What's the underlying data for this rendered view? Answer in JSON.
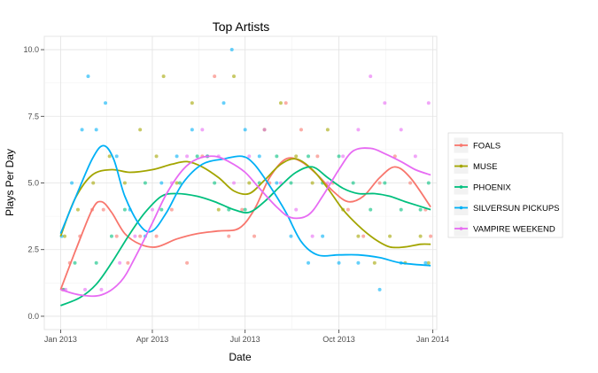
{
  "chart_data": {
    "type": "scatter",
    "title": "Top Artists",
    "xlabel": "Date",
    "ylabel": "Plays Per Day",
    "x_scale": "date",
    "xlim": [
      "2012-12-16",
      "2014-01-05"
    ],
    "ylim": [
      -0.5,
      10.5
    ],
    "x_ticks": [
      {
        "date": "2013-01-01",
        "label": "Jan 2013"
      },
      {
        "date": "2013-04-01",
        "label": "Apr 2013"
      },
      {
        "date": "2013-07-01",
        "label": "Jul 2013"
      },
      {
        "date": "2013-10-01",
        "label": "Oct 2013"
      },
      {
        "date": "2014-01-01",
        "label": "Jan 2014"
      }
    ],
    "y_ticks": [
      {
        "value": 0,
        "label": "0.0"
      },
      {
        "value": 2.5,
        "label": "2.5"
      },
      {
        "value": 5,
        "label": "5.0"
      },
      {
        "value": 7.5,
        "label": "7.5"
      },
      {
        "value": 10,
        "label": "10.0"
      }
    ],
    "grid": true,
    "legend_position": "right",
    "overlays": "smoothed trend lines per series",
    "series": [
      {
        "name": "FOALS",
        "color": "#F8766D",
        "points": [
          [
            "2013-01-03",
            1
          ],
          [
            "2013-01-10",
            2
          ],
          [
            "2013-01-20",
            3
          ],
          [
            "2013-02-01",
            4
          ],
          [
            "2013-02-12",
            4
          ],
          [
            "2013-02-25",
            3
          ],
          [
            "2013-03-08",
            2
          ],
          [
            "2013-03-20",
            3
          ],
          [
            "2013-04-05",
            3
          ],
          [
            "2013-04-20",
            4
          ],
          [
            "2013-05-05",
            2
          ],
          [
            "2013-05-20",
            6
          ],
          [
            "2013-06-01",
            9
          ],
          [
            "2013-06-15",
            3
          ],
          [
            "2013-06-28",
            4
          ],
          [
            "2013-07-10",
            3
          ],
          [
            "2013-07-25",
            5
          ],
          [
            "2013-08-10",
            8
          ],
          [
            "2013-08-25",
            7
          ],
          [
            "2013-09-10",
            6
          ],
          [
            "2013-09-25",
            5
          ],
          [
            "2013-10-10",
            4
          ],
          [
            "2013-10-25",
            3
          ],
          [
            "2013-11-10",
            5
          ],
          [
            "2013-11-25",
            6
          ],
          [
            "2013-12-10",
            5
          ],
          [
            "2013-12-25",
            4
          ],
          [
            "2013-12-30",
            3
          ]
        ],
        "trend": [
          [
            "2013-01-01",
            1.0
          ],
          [
            "2013-01-15",
            2.4
          ],
          [
            "2013-02-01",
            4.0
          ],
          [
            "2013-02-10",
            4.3
          ],
          [
            "2013-02-20",
            3.9
          ],
          [
            "2013-03-05",
            3.1
          ],
          [
            "2013-03-20",
            2.7
          ],
          [
            "2013-04-05",
            2.6
          ],
          [
            "2013-04-25",
            2.9
          ],
          [
            "2013-05-15",
            3.1
          ],
          [
            "2013-06-05",
            3.2
          ],
          [
            "2013-06-25",
            3.3
          ],
          [
            "2013-07-10",
            4.0
          ],
          [
            "2013-07-25",
            5.2
          ],
          [
            "2013-08-10",
            5.9
          ],
          [
            "2013-08-25",
            5.8
          ],
          [
            "2013-09-10",
            5.3
          ],
          [
            "2013-09-25",
            4.7
          ],
          [
            "2013-10-10",
            4.3
          ],
          [
            "2013-10-25",
            4.5
          ],
          [
            "2013-11-10",
            5.2
          ],
          [
            "2013-11-25",
            5.6
          ],
          [
            "2013-12-10",
            5.2
          ],
          [
            "2013-12-30",
            4.1
          ]
        ]
      },
      {
        "name": "MUSE",
        "color": "#A3A500",
        "points": [
          [
            "2013-01-05",
            3
          ],
          [
            "2013-01-18",
            4
          ],
          [
            "2013-02-02",
            5
          ],
          [
            "2013-02-18",
            6
          ],
          [
            "2013-03-05",
            5
          ],
          [
            "2013-03-20",
            7
          ],
          [
            "2013-04-05",
            6
          ],
          [
            "2013-04-12",
            9
          ],
          [
            "2013-04-25",
            5
          ],
          [
            "2013-05-10",
            8
          ],
          [
            "2013-05-25",
            6
          ],
          [
            "2013-06-05",
            4
          ],
          [
            "2013-06-20",
            9
          ],
          [
            "2013-07-05",
            5
          ],
          [
            "2013-07-20",
            7
          ],
          [
            "2013-08-05",
            8
          ],
          [
            "2013-08-20",
            6
          ],
          [
            "2013-09-05",
            5
          ],
          [
            "2013-09-20",
            7
          ],
          [
            "2013-10-05",
            4
          ],
          [
            "2013-10-20",
            3
          ],
          [
            "2013-11-05",
            2
          ],
          [
            "2013-11-20",
            3
          ],
          [
            "2013-12-05",
            2
          ],
          [
            "2013-12-20",
            3
          ],
          [
            "2013-12-28",
            2
          ]
        ],
        "trend": [
          [
            "2013-01-01",
            3.0
          ],
          [
            "2013-01-15",
            4.4
          ],
          [
            "2013-02-01",
            5.3
          ],
          [
            "2013-02-20",
            5.5
          ],
          [
            "2013-03-10",
            5.4
          ],
          [
            "2013-04-01",
            5.5
          ],
          [
            "2013-04-20",
            5.7
          ],
          [
            "2013-05-05",
            5.8
          ],
          [
            "2013-05-20",
            5.6
          ],
          [
            "2013-06-05",
            5.2
          ],
          [
            "2013-06-20",
            4.7
          ],
          [
            "2013-07-05",
            4.6
          ],
          [
            "2013-07-20",
            5.1
          ],
          [
            "2013-08-05",
            5.7
          ],
          [
            "2013-08-20",
            5.9
          ],
          [
            "2013-09-05",
            5.5
          ],
          [
            "2013-09-20",
            4.8
          ],
          [
            "2013-10-05",
            4.0
          ],
          [
            "2013-10-20",
            3.4
          ],
          [
            "2013-11-05",
            2.9
          ],
          [
            "2013-11-20",
            2.6
          ],
          [
            "2013-12-05",
            2.6
          ],
          [
            "2013-12-20",
            2.7
          ],
          [
            "2013-12-30",
            2.7
          ]
        ]
      },
      {
        "name": "PHOENIX",
        "color": "#00BF7D",
        "points": [
          [
            "2013-01-04",
            1
          ],
          [
            "2013-01-15",
            2
          ],
          [
            "2013-02-05",
            2
          ],
          [
            "2013-02-20",
            3
          ],
          [
            "2013-03-05",
            4
          ],
          [
            "2013-03-25",
            5
          ],
          [
            "2013-04-10",
            4
          ],
          [
            "2013-04-28",
            5
          ],
          [
            "2013-05-15",
            6
          ],
          [
            "2013-06-01",
            5
          ],
          [
            "2013-06-15",
            4
          ],
          [
            "2013-07-01",
            4
          ],
          [
            "2013-07-15",
            5
          ],
          [
            "2013-08-01",
            6
          ],
          [
            "2013-08-15",
            5
          ],
          [
            "2013-09-01",
            6
          ],
          [
            "2013-09-15",
            5
          ],
          [
            "2013-10-01",
            6
          ],
          [
            "2013-10-15",
            5
          ],
          [
            "2013-11-01",
            4
          ],
          [
            "2013-11-15",
            5
          ],
          [
            "2013-12-01",
            4
          ],
          [
            "2013-12-20",
            4
          ],
          [
            "2013-12-28",
            5
          ]
        ],
        "trend": [
          [
            "2013-01-01",
            0.4
          ],
          [
            "2013-01-20",
            0.7
          ],
          [
            "2013-02-05",
            1.2
          ],
          [
            "2013-02-20",
            2.0
          ],
          [
            "2013-03-10",
            3.1
          ],
          [
            "2013-03-25",
            3.9
          ],
          [
            "2013-04-10",
            4.5
          ],
          [
            "2013-04-25",
            4.6
          ],
          [
            "2013-05-15",
            4.5
          ],
          [
            "2013-06-01",
            4.3
          ],
          [
            "2013-06-20",
            4.0
          ],
          [
            "2013-07-05",
            3.9
          ],
          [
            "2013-07-20",
            4.3
          ],
          [
            "2013-08-05",
            4.9
          ],
          [
            "2013-08-20",
            5.4
          ],
          [
            "2013-09-05",
            5.6
          ],
          [
            "2013-09-20",
            5.2
          ],
          [
            "2013-10-05",
            4.8
          ],
          [
            "2013-10-20",
            4.6
          ],
          [
            "2013-11-05",
            4.6
          ],
          [
            "2013-11-20",
            4.5
          ],
          [
            "2013-12-05",
            4.3
          ],
          [
            "2013-12-30",
            4.0
          ]
        ]
      },
      {
        "name": "SILVERSUN PICKUPS",
        "color": "#00B0F6",
        "points": [
          [
            "2013-01-02",
            3
          ],
          [
            "2013-01-12",
            5
          ],
          [
            "2013-01-22",
            7
          ],
          [
            "2013-01-28",
            9
          ],
          [
            "2013-02-05",
            7
          ],
          [
            "2013-02-14",
            8
          ],
          [
            "2013-02-25",
            6
          ],
          [
            "2013-03-10",
            4
          ],
          [
            "2013-03-25",
            3
          ],
          [
            "2013-04-10",
            5
          ],
          [
            "2013-04-25",
            6
          ],
          [
            "2013-05-10",
            7
          ],
          [
            "2013-05-25",
            6
          ],
          [
            "2013-06-10",
            8
          ],
          [
            "2013-06-18",
            10
          ],
          [
            "2013-07-01",
            7
          ],
          [
            "2013-07-15",
            6
          ],
          [
            "2013-08-01",
            5
          ],
          [
            "2013-08-15",
            3
          ],
          [
            "2013-09-01",
            2
          ],
          [
            "2013-09-15",
            3
          ],
          [
            "2013-10-01",
            2
          ],
          [
            "2013-10-20",
            2
          ],
          [
            "2013-11-10",
            1
          ],
          [
            "2013-12-01",
            2
          ],
          [
            "2013-12-25",
            2
          ]
        ],
        "trend": [
          [
            "2013-01-01",
            3.1
          ],
          [
            "2013-01-15",
            4.4
          ],
          [
            "2013-02-01",
            5.9
          ],
          [
            "2013-02-12",
            6.4
          ],
          [
            "2013-02-22",
            5.9
          ],
          [
            "2013-03-05",
            4.5
          ],
          [
            "2013-03-20",
            3.4
          ],
          [
            "2013-04-01",
            3.2
          ],
          [
            "2013-04-15",
            3.9
          ],
          [
            "2013-05-01",
            5.0
          ],
          [
            "2013-05-20",
            5.7
          ],
          [
            "2013-06-10",
            5.9
          ],
          [
            "2013-06-28",
            6.0
          ],
          [
            "2013-07-10",
            5.7
          ],
          [
            "2013-07-25",
            4.9
          ],
          [
            "2013-08-10",
            3.9
          ],
          [
            "2013-08-25",
            2.8
          ],
          [
            "2013-09-10",
            2.3
          ],
          [
            "2013-10-01",
            2.3
          ],
          [
            "2013-10-20",
            2.3
          ],
          [
            "2013-11-10",
            2.2
          ],
          [
            "2013-12-01",
            2.0
          ],
          [
            "2013-12-30",
            1.9
          ]
        ]
      },
      {
        "name": "VAMPIRE WEEKEND",
        "color": "#E76BF3",
        "points": [
          [
            "2013-01-06",
            1
          ],
          [
            "2013-01-25",
            1
          ],
          [
            "2013-02-10",
            1
          ],
          [
            "2013-02-28",
            2
          ],
          [
            "2013-03-15",
            3
          ],
          [
            "2013-04-01",
            4
          ],
          [
            "2013-04-20",
            5
          ],
          [
            "2013-05-05",
            6
          ],
          [
            "2013-05-20",
            7
          ],
          [
            "2013-06-05",
            6
          ],
          [
            "2013-06-20",
            5
          ],
          [
            "2013-07-05",
            6
          ],
          [
            "2013-07-20",
            7
          ],
          [
            "2013-08-05",
            5
          ],
          [
            "2013-08-20",
            4
          ],
          [
            "2013-09-05",
            3
          ],
          [
            "2013-09-20",
            5
          ],
          [
            "2013-10-05",
            6
          ],
          [
            "2013-10-20",
            7
          ],
          [
            "2013-11-01",
            9
          ],
          [
            "2013-11-15",
            8
          ],
          [
            "2013-12-01",
            7
          ],
          [
            "2013-12-15",
            6
          ],
          [
            "2013-12-28",
            8
          ]
        ],
        "trend": [
          [
            "2013-01-01",
            1.0
          ],
          [
            "2013-01-20",
            0.8
          ],
          [
            "2013-02-10",
            0.8
          ],
          [
            "2013-03-01",
            1.3
          ],
          [
            "2013-03-15",
            2.2
          ],
          [
            "2013-04-01",
            3.5
          ],
          [
            "2013-04-15",
            4.6
          ],
          [
            "2013-05-01",
            5.5
          ],
          [
            "2013-05-15",
            5.9
          ],
          [
            "2013-06-01",
            6.0
          ],
          [
            "2013-06-15",
            5.8
          ],
          [
            "2013-07-01",
            5.4
          ],
          [
            "2013-07-15",
            4.8
          ],
          [
            "2013-08-01",
            4.1
          ],
          [
            "2013-08-15",
            3.7
          ],
          [
            "2013-09-01",
            3.8
          ],
          [
            "2013-09-15",
            4.5
          ],
          [
            "2013-10-01",
            5.5
          ],
          [
            "2013-10-15",
            6.2
          ],
          [
            "2013-11-01",
            6.3
          ],
          [
            "2013-11-15",
            6.1
          ],
          [
            "2013-12-01",
            5.8
          ],
          [
            "2013-12-15",
            5.5
          ],
          [
            "2013-12-30",
            5.3
          ]
        ]
      }
    ]
  }
}
